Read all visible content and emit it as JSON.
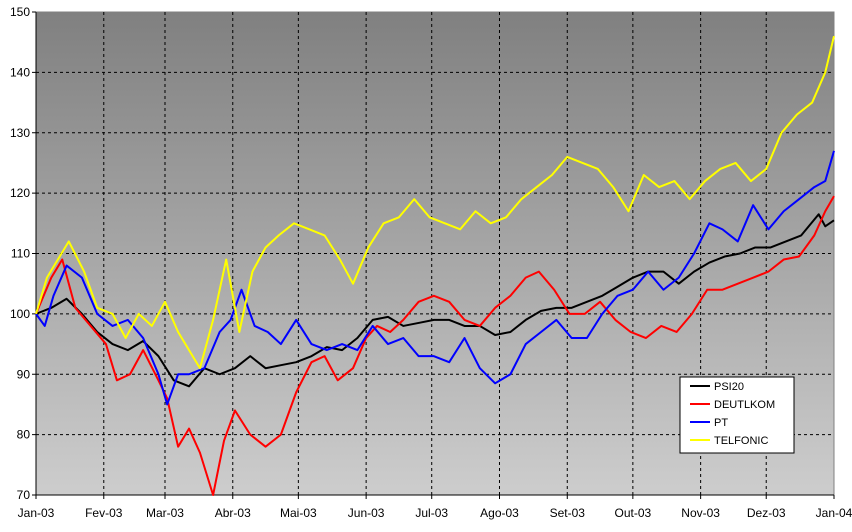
{
  "chart_data": {
    "type": "line",
    "title": "",
    "xlabel": "",
    "ylabel": "",
    "ylim": [
      70,
      150
    ],
    "y_ticks": [
      70,
      80,
      90,
      100,
      110,
      120,
      130,
      140,
      150
    ],
    "x_range": [
      "2003-01-02",
      "2004-01-02"
    ],
    "x_ticks": [
      {
        "date": "2003-01-02",
        "label": "Jan-03"
      },
      {
        "date": "2003-02-02",
        "label": "Fev-03"
      },
      {
        "date": "2003-03-02",
        "label": "Mar-03"
      },
      {
        "date": "2003-04-02",
        "label": "Abr-03"
      },
      {
        "date": "2003-05-02",
        "label": "Mai-03"
      },
      {
        "date": "2003-06-02",
        "label": "Jun-03"
      },
      {
        "date": "2003-07-02",
        "label": "Jul-03"
      },
      {
        "date": "2003-08-02",
        "label": "Ago-03"
      },
      {
        "date": "2003-09-02",
        "label": "Set-03"
      },
      {
        "date": "2003-10-02",
        "label": "Out-03"
      },
      {
        "date": "2003-11-02",
        "label": "Nov-03"
      },
      {
        "date": "2003-12-02",
        "label": "Dez-03"
      },
      {
        "date": "2004-01-02",
        "label": "Jan-04"
      }
    ],
    "grid": true,
    "legend_position": "bottom-right",
    "series": [
      {
        "name": "PSI20",
        "color": "#000000",
        "points": [
          [
            "2003-01-02",
            100
          ],
          [
            "2003-01-09",
            101
          ],
          [
            "2003-01-16",
            102.5
          ],
          [
            "2003-01-23",
            100
          ],
          [
            "2003-01-30",
            97
          ],
          [
            "2003-02-06",
            95
          ],
          [
            "2003-02-13",
            94
          ],
          [
            "2003-02-20",
            95.5
          ],
          [
            "2003-02-27",
            93
          ],
          [
            "2003-03-06",
            89
          ],
          [
            "2003-03-13",
            88
          ],
          [
            "2003-03-20",
            91
          ],
          [
            "2003-03-27",
            90
          ],
          [
            "2003-04-03",
            91
          ],
          [
            "2003-04-10",
            93
          ],
          [
            "2003-04-17",
            91
          ],
          [
            "2003-04-24",
            91.5
          ],
          [
            "2003-05-01",
            92
          ],
          [
            "2003-05-08",
            93
          ],
          [
            "2003-05-15",
            94.5
          ],
          [
            "2003-05-22",
            94
          ],
          [
            "2003-05-29",
            96
          ],
          [
            "2003-06-05",
            99
          ],
          [
            "2003-06-12",
            99.5
          ],
          [
            "2003-06-19",
            98
          ],
          [
            "2003-06-26",
            98.5
          ],
          [
            "2003-07-03",
            99
          ],
          [
            "2003-07-10",
            99
          ],
          [
            "2003-07-17",
            98
          ],
          [
            "2003-07-24",
            98
          ],
          [
            "2003-07-31",
            96.5
          ],
          [
            "2003-08-07",
            97
          ],
          [
            "2003-08-14",
            99
          ],
          [
            "2003-08-21",
            100.5
          ],
          [
            "2003-08-28",
            101
          ],
          [
            "2003-09-04",
            101
          ],
          [
            "2003-09-11",
            102
          ],
          [
            "2003-09-18",
            103
          ],
          [
            "2003-09-25",
            104.5
          ],
          [
            "2003-10-02",
            106
          ],
          [
            "2003-10-09",
            107
          ],
          [
            "2003-10-16",
            107
          ],
          [
            "2003-10-23",
            105
          ],
          [
            "2003-10-30",
            107
          ],
          [
            "2003-11-06",
            108.5
          ],
          [
            "2003-11-13",
            109.5
          ],
          [
            "2003-11-20",
            110
          ],
          [
            "2003-11-27",
            111
          ],
          [
            "2003-12-04",
            111
          ],
          [
            "2003-12-11",
            112
          ],
          [
            "2003-12-18",
            113
          ],
          [
            "2003-12-26",
            116.5
          ],
          [
            "2003-12-29",
            114.5
          ],
          [
            "2004-01-02",
            115.5
          ]
        ]
      },
      {
        "name": "DEUTLKOM",
        "color": "#ff0000",
        "points": [
          [
            "2003-01-02",
            100
          ],
          [
            "2003-01-09",
            106
          ],
          [
            "2003-01-14",
            109
          ],
          [
            "2003-01-20",
            101
          ],
          [
            "2003-01-27",
            98
          ],
          [
            "2003-02-03",
            95
          ],
          [
            "2003-02-08",
            89
          ],
          [
            "2003-02-14",
            90
          ],
          [
            "2003-02-20",
            94
          ],
          [
            "2003-02-27",
            89
          ],
          [
            "2003-03-03",
            86
          ],
          [
            "2003-03-08",
            78
          ],
          [
            "2003-03-13",
            81
          ],
          [
            "2003-03-18",
            77
          ],
          [
            "2003-03-24",
            70
          ],
          [
            "2003-03-29",
            79
          ],
          [
            "2003-04-03",
            84
          ],
          [
            "2003-04-10",
            80
          ],
          [
            "2003-04-17",
            78
          ],
          [
            "2003-04-24",
            80
          ],
          [
            "2003-05-01",
            87
          ],
          [
            "2003-05-08",
            92
          ],
          [
            "2003-05-14",
            93
          ],
          [
            "2003-05-20",
            89
          ],
          [
            "2003-05-27",
            91
          ],
          [
            "2003-06-02",
            96
          ],
          [
            "2003-06-07",
            98
          ],
          [
            "2003-06-13",
            97
          ],
          [
            "2003-06-19",
            99
          ],
          [
            "2003-06-26",
            102
          ],
          [
            "2003-07-03",
            103
          ],
          [
            "2003-07-10",
            102
          ],
          [
            "2003-07-17",
            99
          ],
          [
            "2003-07-24",
            98
          ],
          [
            "2003-07-31",
            101
          ],
          [
            "2003-08-07",
            103
          ],
          [
            "2003-08-14",
            106
          ],
          [
            "2003-08-20",
            107
          ],
          [
            "2003-08-27",
            104
          ],
          [
            "2003-09-03",
            100
          ],
          [
            "2003-09-10",
            100
          ],
          [
            "2003-09-17",
            102
          ],
          [
            "2003-09-24",
            99
          ],
          [
            "2003-10-01",
            97
          ],
          [
            "2003-10-08",
            96
          ],
          [
            "2003-10-15",
            98
          ],
          [
            "2003-10-22",
            97
          ],
          [
            "2003-10-29",
            100
          ],
          [
            "2003-11-05",
            104
          ],
          [
            "2003-11-12",
            104
          ],
          [
            "2003-11-19",
            105
          ],
          [
            "2003-11-26",
            106
          ],
          [
            "2003-12-03",
            107
          ],
          [
            "2003-12-10",
            109
          ],
          [
            "2003-12-17",
            109.5
          ],
          [
            "2003-12-24",
            113
          ],
          [
            "2003-12-29",
            117
          ],
          [
            "2004-01-02",
            119.5
          ]
        ]
      },
      {
        "name": "PT",
        "color": "#0000ff",
        "points": [
          [
            "2003-01-02",
            100
          ],
          [
            "2003-01-06",
            98
          ],
          [
            "2003-01-10",
            103
          ],
          [
            "2003-01-16",
            108
          ],
          [
            "2003-01-23",
            106
          ],
          [
            "2003-01-30",
            100
          ],
          [
            "2003-02-06",
            98
          ],
          [
            "2003-02-13",
            99
          ],
          [
            "2003-02-20",
            96
          ],
          [
            "2003-02-27",
            90
          ],
          [
            "2003-03-03",
            85
          ],
          [
            "2003-03-08",
            90
          ],
          [
            "2003-03-13",
            90
          ],
          [
            "2003-03-20",
            91
          ],
          [
            "2003-03-27",
            97
          ],
          [
            "2003-04-01",
            99
          ],
          [
            "2003-04-06",
            104
          ],
          [
            "2003-04-12",
            98
          ],
          [
            "2003-04-18",
            97
          ],
          [
            "2003-04-24",
            95
          ],
          [
            "2003-05-01",
            99
          ],
          [
            "2003-05-08",
            95
          ],
          [
            "2003-05-15",
            94
          ],
          [
            "2003-05-22",
            95
          ],
          [
            "2003-05-29",
            94
          ],
          [
            "2003-06-05",
            98
          ],
          [
            "2003-06-12",
            95
          ],
          [
            "2003-06-19",
            96
          ],
          [
            "2003-06-26",
            93
          ],
          [
            "2003-07-03",
            93
          ],
          [
            "2003-07-10",
            92
          ],
          [
            "2003-07-17",
            96
          ],
          [
            "2003-07-24",
            91
          ],
          [
            "2003-07-31",
            88.5
          ],
          [
            "2003-08-07",
            90
          ],
          [
            "2003-08-14",
            95
          ],
          [
            "2003-08-21",
            97
          ],
          [
            "2003-08-28",
            99
          ],
          [
            "2003-09-04",
            96
          ],
          [
            "2003-09-11",
            96
          ],
          [
            "2003-09-18",
            100
          ],
          [
            "2003-09-25",
            103
          ],
          [
            "2003-10-02",
            104
          ],
          [
            "2003-10-09",
            107
          ],
          [
            "2003-10-16",
            104
          ],
          [
            "2003-10-23",
            106
          ],
          [
            "2003-10-30",
            110
          ],
          [
            "2003-11-06",
            115
          ],
          [
            "2003-11-12",
            114
          ],
          [
            "2003-11-19",
            112
          ],
          [
            "2003-11-26",
            118
          ],
          [
            "2003-12-03",
            114
          ],
          [
            "2003-12-10",
            117
          ],
          [
            "2003-12-17",
            119
          ],
          [
            "2003-12-24",
            121
          ],
          [
            "2003-12-29",
            122
          ],
          [
            "2004-01-02",
            127
          ]
        ]
      },
      {
        "name": "TELFONIC",
        "color": "#ffff00",
        "points": [
          [
            "2003-01-02",
            100
          ],
          [
            "2003-01-07",
            106
          ],
          [
            "2003-01-12",
            109
          ],
          [
            "2003-01-17",
            112
          ],
          [
            "2003-01-24",
            107
          ],
          [
            "2003-01-30",
            101
          ],
          [
            "2003-02-06",
            100
          ],
          [
            "2003-02-12",
            96
          ],
          [
            "2003-02-18",
            100
          ],
          [
            "2003-02-24",
            98
          ],
          [
            "2003-03-02",
            102
          ],
          [
            "2003-03-08",
            97
          ],
          [
            "2003-03-13",
            94
          ],
          [
            "2003-03-18",
            91
          ],
          [
            "2003-03-24",
            99
          ],
          [
            "2003-03-30",
            109
          ],
          [
            "2003-04-05",
            97
          ],
          [
            "2003-04-11",
            107
          ],
          [
            "2003-04-17",
            111
          ],
          [
            "2003-04-23",
            113
          ],
          [
            "2003-04-30",
            115
          ],
          [
            "2003-05-07",
            114
          ],
          [
            "2003-05-14",
            113
          ],
          [
            "2003-05-21",
            109
          ],
          [
            "2003-05-27",
            105
          ],
          [
            "2003-06-03",
            111
          ],
          [
            "2003-06-10",
            115
          ],
          [
            "2003-06-17",
            116
          ],
          [
            "2003-06-24",
            119
          ],
          [
            "2003-07-01",
            116
          ],
          [
            "2003-07-08",
            115
          ],
          [
            "2003-07-15",
            114
          ],
          [
            "2003-07-22",
            117
          ],
          [
            "2003-07-29",
            115
          ],
          [
            "2003-08-05",
            116
          ],
          [
            "2003-08-12",
            119
          ],
          [
            "2003-08-19",
            121
          ],
          [
            "2003-08-26",
            123
          ],
          [
            "2003-09-02",
            126
          ],
          [
            "2003-09-09",
            125
          ],
          [
            "2003-09-16",
            124
          ],
          [
            "2003-09-23",
            121
          ],
          [
            "2003-09-30",
            117
          ],
          [
            "2003-10-07",
            123
          ],
          [
            "2003-10-14",
            121
          ],
          [
            "2003-10-21",
            122
          ],
          [
            "2003-10-28",
            119
          ],
          [
            "2003-11-04",
            122
          ],
          [
            "2003-11-11",
            124
          ],
          [
            "2003-11-18",
            125
          ],
          [
            "2003-11-25",
            122
          ],
          [
            "2003-12-02",
            124
          ],
          [
            "2003-12-09",
            130
          ],
          [
            "2003-12-16",
            133
          ],
          [
            "2003-12-23",
            135
          ],
          [
            "2003-12-29",
            140
          ],
          [
            "2004-01-02",
            146
          ]
        ]
      }
    ]
  }
}
